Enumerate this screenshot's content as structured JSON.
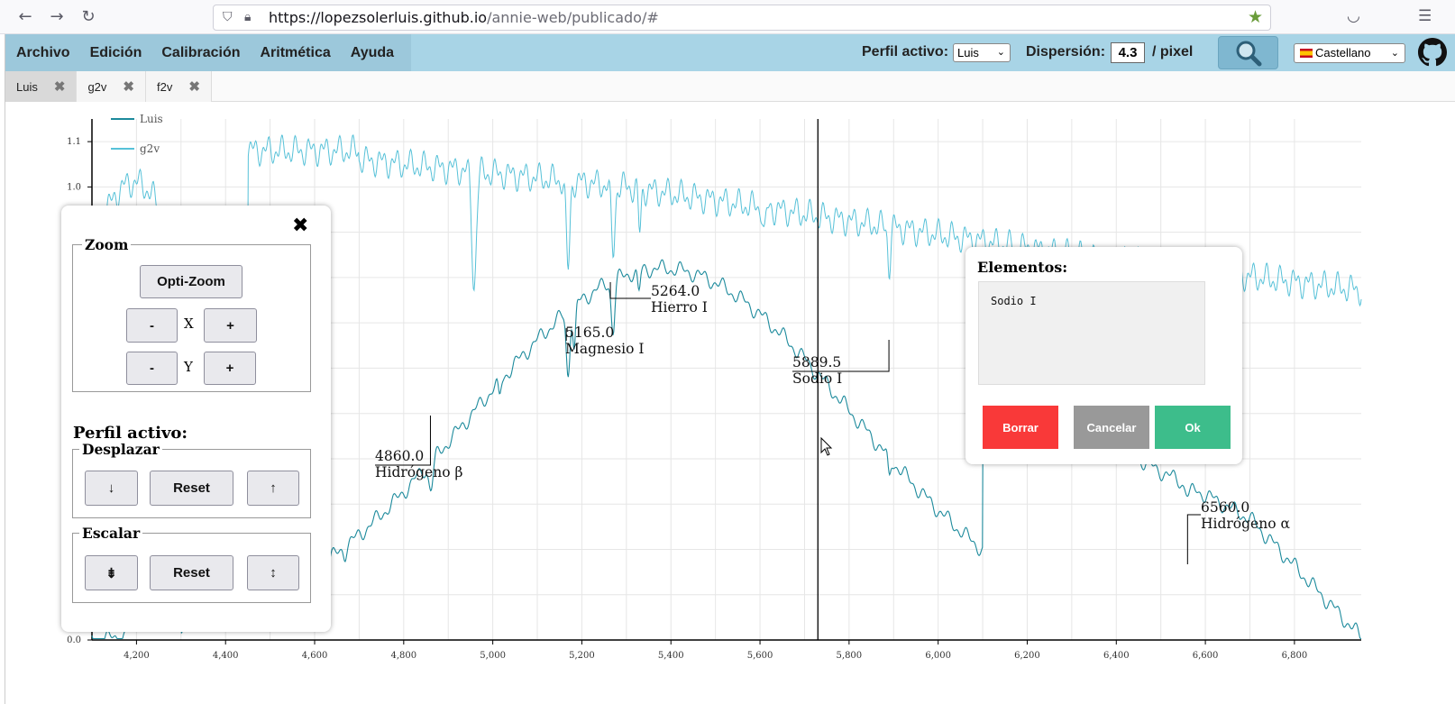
{
  "browser": {
    "url_host": "https://lopezsolerluis.github.io",
    "url_path": "/annie-web/publicado/#"
  },
  "menu": {
    "items": [
      "Archivo",
      "Edición",
      "Calibración",
      "Aritmética",
      "Ayuda"
    ],
    "perfil_label": "Perfil activo:",
    "perfil_value": "Luis",
    "dispersion_label": "Dispersión:",
    "dispersion_value": "4.3",
    "dispersion_unit": "/ pixel",
    "language": "Castellano"
  },
  "tabs": [
    {
      "label": "Luis",
      "active": true
    },
    {
      "label": "g2v",
      "active": false
    },
    {
      "label": "f2v",
      "active": false
    }
  ],
  "chart_data": {
    "type": "line",
    "xlim": [
      4100,
      6950
    ],
    "ylim": [
      0,
      1.15
    ],
    "x_ticks": [
      "4,200",
      "4,400",
      "4,600",
      "4,800",
      "5,000",
      "5,200",
      "5,400",
      "5,600",
      "5,800",
      "6,000",
      "6,200",
      "6,400",
      "6,600",
      "6,800"
    ],
    "y_ticks": [
      "0.0",
      "1.0",
      "1.1"
    ],
    "grid": true,
    "legend_position": "top-left",
    "cursor_x": 5730,
    "series": [
      {
        "name": "Luis",
        "color": "#1c8a9c"
      },
      {
        "name": "g2v",
        "color": "#56c1d8"
      }
    ],
    "annotations": [
      {
        "value": "4860.0",
        "label": "Hidrógeno β"
      },
      {
        "value": "5165.0",
        "label": "Magnesio I"
      },
      {
        "value": "5264.0",
        "label": "Hierro I"
      },
      {
        "value": "5889.5",
        "label": "Sodio I"
      },
      {
        "value": "6560.0",
        "label": "Hidrógeno α"
      }
    ]
  },
  "panel": {
    "zoom_legend": "Zoom",
    "optizoom": "Opti-Zoom",
    "minus": "-",
    "plus": "+",
    "x_label": "X",
    "y_label": "Y",
    "perfil_heading": "Perfil activo:",
    "desplazar_legend": "Desplazar",
    "escalar_legend": "Escalar",
    "down": "↓",
    "up": "↑",
    "reset": "Reset",
    "shrink": "⇟",
    "grow": "↕"
  },
  "dialog": {
    "title": "Elementos:",
    "text": "Sodio I",
    "borrar": "Borrar",
    "cancelar": "Cancelar",
    "ok": "Ok",
    "borrar_color": "#f93939",
    "cancelar_color": "#999999",
    "ok_color": "#3dbd8b"
  }
}
